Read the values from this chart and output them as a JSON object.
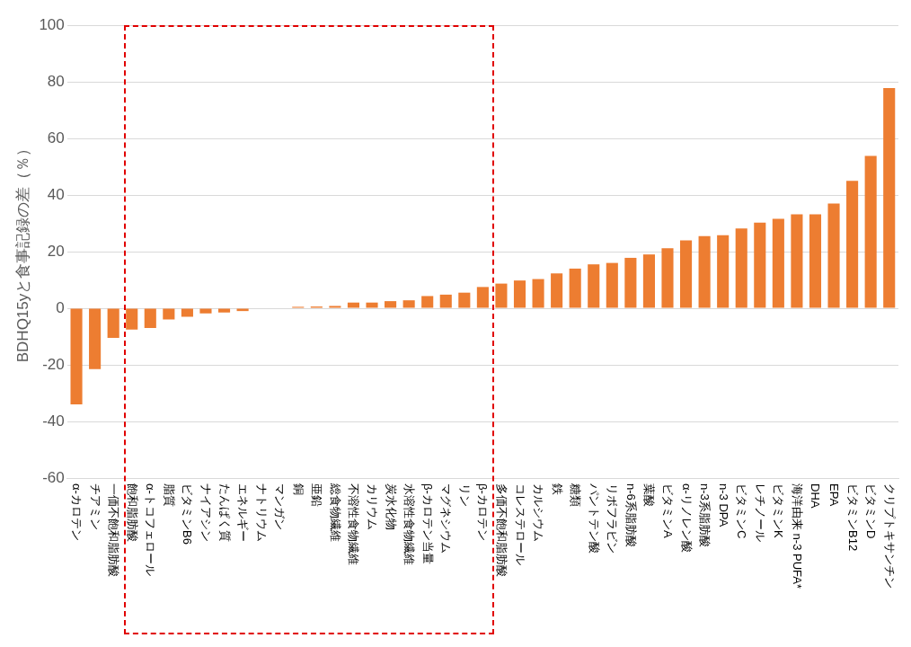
{
  "chart_data": {
    "type": "bar",
    "ylabel": "BDHQ15yと食事記録の差（％）",
    "categories": [
      "α-カロテン",
      "チアミン",
      "一価不飽和脂肪酸",
      "飽和脂肪酸",
      "α-トコフェロール",
      "脂質",
      "ビタミンB6",
      "ナイアシン",
      "たんぱく質",
      "エネルギー",
      "ナトリウム",
      "マンガン",
      "銅",
      "亜鉛",
      "総食物繊維",
      "不溶性食物繊維",
      "カリウム",
      "炭水化物",
      "水溶性食物繊維",
      "β-カロテン当量",
      "マグネシウム",
      "リン",
      "β-カロテン",
      "多価不飽和脂肪酸",
      "コレステロール",
      "カルシウム",
      "鉄",
      "糖類",
      "パントテン酸",
      "リボフラビン",
      "n-6系脂肪酸",
      "葉酸",
      "ビタミンA",
      "α-リノレン酸",
      "n-3系脂肪酸",
      "n-3 DPA",
      "ビタミンC",
      "レチノール",
      "ビタミンK",
      "海洋由来 n-3 PUFA*",
      "DHA",
      "EPA",
      "ビタミンB12",
      "ビタミンD",
      "クリプトキサンチン"
    ],
    "values": [
      -34,
      -21.5,
      -10.5,
      -7.5,
      -7,
      -4,
      -3,
      -1.8,
      -1.5,
      -1,
      null,
      null,
      0.5,
      0.6,
      0.8,
      2,
      2,
      2.5,
      2.8,
      4.3,
      4.8,
      5.5,
      7.5,
      8.7,
      9.8,
      10.3,
      12.3,
      14,
      15.5,
      16,
      17.8,
      19,
      21.2,
      24,
      25.5,
      25.8,
      28.2,
      30.2,
      31.6,
      33.2,
      33.2,
      37,
      45,
      53.8,
      77.8
    ],
    "color": "#ed7d31",
    "ylim": [
      -60,
      100
    ],
    "yticks": [
      -60,
      -40,
      -20,
      0,
      20,
      40,
      60,
      80,
      100
    ],
    "grid": "y",
    "legend": false
  }
}
